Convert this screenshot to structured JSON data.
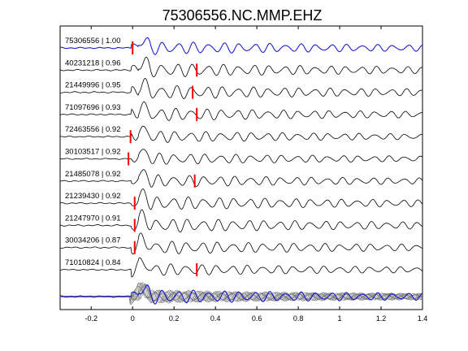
{
  "chart_data": {
    "type": "line",
    "title": "75306556.NC.MMP.EHZ",
    "xlabel": "",
    "ylabel": "",
    "xlim": [
      -0.35,
      1.4
    ],
    "xticks": [
      -0.2,
      0,
      0.2,
      0.4,
      0.6,
      0.8,
      1,
      1.2,
      1.4
    ],
    "xtick_labels": [
      "-0.2",
      "0",
      "0.2",
      "0.4",
      "0.6",
      "0.8",
      "1",
      "1.2",
      "1.4"
    ],
    "grid": false,
    "colors": {
      "reference_trace": "#1f1fd0",
      "trace": "#000000",
      "pick_marker": "#ff0000",
      "stack_overlay": "#777777",
      "stack_mean": "#1f1fd0"
    },
    "series": [
      {
        "label": "75306556 | 1.00",
        "pick": 0.0,
        "highlight": true
      },
      {
        "label": "40231218 | 0.96",
        "pick": 0.31,
        "highlight": false
      },
      {
        "label": "21449996 | 0.95",
        "pick": 0.29,
        "highlight": false
      },
      {
        "label": "71097696 | 0.93",
        "pick": 0.31,
        "highlight": false
      },
      {
        "label": "72463556 | 0.92",
        "pick": -0.01,
        "highlight": false
      },
      {
        "label": "30103517 | 0.92",
        "pick": -0.02,
        "highlight": false
      },
      {
        "label": "21485078 | 0.92",
        "pick": 0.3,
        "highlight": false
      },
      {
        "label": "21239430 | 0.92",
        "pick": 0.01,
        "highlight": false
      },
      {
        "label": "21247970 | 0.91",
        "pick": 0.01,
        "highlight": false
      },
      {
        "label": "30034206 | 0.87",
        "pick": 0.01,
        "highlight": false
      },
      {
        "label": "71010824 | 0.84",
        "pick": 0.31,
        "highlight": false
      }
    ],
    "stack": {
      "overlay_count": 11
    }
  }
}
